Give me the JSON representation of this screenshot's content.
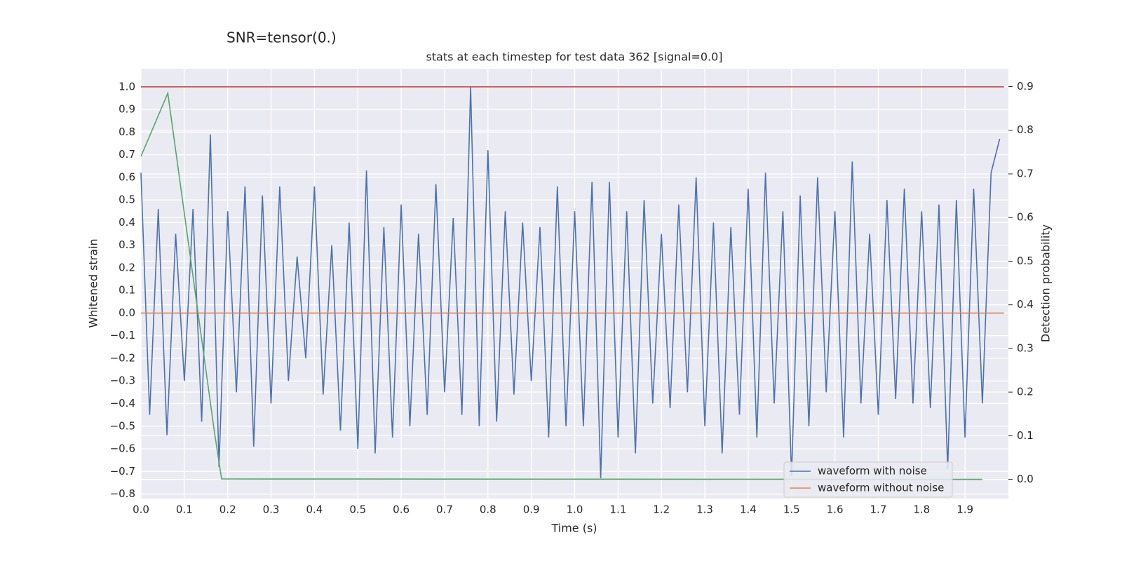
{
  "chart_data": {
    "type": "line",
    "suptitle": "SNR=tensor(0.)",
    "title": "stats at each timestep for test data 362 [signal=0.0]",
    "xlabel": "Time (s)",
    "ylabel": "Whitened strain",
    "y2label": "Detection probability",
    "xlim": [
      0,
      2.0
    ],
    "ylim": [
      -0.82,
      1.08
    ],
    "y2lim": [
      -0.044,
      0.941
    ],
    "grid": true,
    "legend": "lower right",
    "xticks": [
      {
        "value": 0,
        "label": "0.0"
      },
      {
        "value": 0.1,
        "label": "0.1"
      },
      {
        "value": 0.2,
        "label": "0.2"
      },
      {
        "value": 0.3,
        "label": "0.3"
      },
      {
        "value": 0.4,
        "label": "0.4"
      },
      {
        "value": 0.5,
        "label": "0.5"
      },
      {
        "value": 0.6,
        "label": "0.6"
      },
      {
        "value": 0.7,
        "label": "0.7"
      },
      {
        "value": 0.8,
        "label": "0.8"
      },
      {
        "value": 0.9,
        "label": "0.9"
      },
      {
        "value": 1.0,
        "label": "1.0"
      },
      {
        "value": 1.1,
        "label": "1.1"
      },
      {
        "value": 1.2,
        "label": "1.2"
      },
      {
        "value": 1.3,
        "label": "1.3"
      },
      {
        "value": 1.4,
        "label": "1.4"
      },
      {
        "value": 1.5,
        "label": "1.5"
      },
      {
        "value": 1.6,
        "label": "1.6"
      },
      {
        "value": 1.7,
        "label": "1.7"
      },
      {
        "value": 1.8,
        "label": "1.8"
      },
      {
        "value": 1.9,
        "label": "1.9"
      }
    ],
    "yticks": [
      {
        "value": -0.8,
        "label": "−0.8"
      },
      {
        "value": -0.7,
        "label": "−0.7"
      },
      {
        "value": -0.6,
        "label": "−0.6"
      },
      {
        "value": -0.5,
        "label": "−0.5"
      },
      {
        "value": -0.4,
        "label": "−0.4"
      },
      {
        "value": -0.3,
        "label": "−0.3"
      },
      {
        "value": -0.2,
        "label": "−0.2"
      },
      {
        "value": -0.1,
        "label": "−0.1"
      },
      {
        "value": 0,
        "label": "0.0"
      },
      {
        "value": 0.1,
        "label": "0.1"
      },
      {
        "value": 0.2,
        "label": "0.2"
      },
      {
        "value": 0.3,
        "label": "0.3"
      },
      {
        "value": 0.4,
        "label": "0.4"
      },
      {
        "value": 0.5,
        "label": "0.5"
      },
      {
        "value": 0.6,
        "label": "0.6"
      },
      {
        "value": 0.7,
        "label": "0.7"
      },
      {
        "value": 0.8,
        "label": "0.8"
      },
      {
        "value": 0.9,
        "label": "0.9"
      },
      {
        "value": 1.0,
        "label": "1.0"
      }
    ],
    "y2ticks": [
      {
        "value": 0,
        "label": "0.0"
      },
      {
        "value": 0.1,
        "label": "0.1"
      },
      {
        "value": 0.2,
        "label": "0.2"
      },
      {
        "value": 0.3,
        "label": "0.3"
      },
      {
        "value": 0.4,
        "label": "0.4"
      },
      {
        "value": 0.5,
        "label": "0.5"
      },
      {
        "value": 0.6,
        "label": "0.6"
      },
      {
        "value": 0.7,
        "label": "0.7"
      },
      {
        "value": 0.8,
        "label": "0.8"
      },
      {
        "value": 0.9,
        "label": "0.9"
      }
    ],
    "series": [
      {
        "name": "waveform with noise",
        "color": "#4c72b0",
        "x": [
          0,
          0.02,
          0.04,
          0.06,
          0.08,
          0.1,
          0.12,
          0.14,
          0.16,
          0.18,
          0.2,
          0.22,
          0.24,
          0.26,
          0.28,
          0.3,
          0.32,
          0.34,
          0.36,
          0.38,
          0.4,
          0.42,
          0.44,
          0.46,
          0.48,
          0.5,
          0.52,
          0.54,
          0.56,
          0.58,
          0.6,
          0.62,
          0.64,
          0.66,
          0.68,
          0.7,
          0.72,
          0.74,
          0.76,
          0.78,
          0.8,
          0.82,
          0.84,
          0.86,
          0.88,
          0.9,
          0.92,
          0.94,
          0.96,
          0.98,
          1.0,
          1.02,
          1.04,
          1.06,
          1.08,
          1.1,
          1.12,
          1.14,
          1.16,
          1.18,
          1.2,
          1.22,
          1.24,
          1.26,
          1.28,
          1.3,
          1.32,
          1.34,
          1.36,
          1.38,
          1.4,
          1.42,
          1.44,
          1.46,
          1.48,
          1.5,
          1.52,
          1.54,
          1.56,
          1.58,
          1.6,
          1.62,
          1.64,
          1.66,
          1.68,
          1.7,
          1.72,
          1.74,
          1.76,
          1.78,
          1.8,
          1.82,
          1.84,
          1.86,
          1.88,
          1.9,
          1.92,
          1.94,
          1.96,
          1.98
        ],
        "values": [
          0.62,
          -0.45,
          0.46,
          -0.54,
          0.35,
          -0.3,
          0.46,
          -0.48,
          0.79,
          -0.68,
          0.45,
          -0.35,
          0.56,
          -0.59,
          0.52,
          -0.4,
          0.56,
          -0.3,
          0.25,
          -0.2,
          0.56,
          -0.36,
          0.3,
          -0.52,
          0.4,
          -0.6,
          0.63,
          -0.62,
          0.38,
          -0.55,
          0.48,
          -0.5,
          0.35,
          -0.45,
          0.57,
          -0.35,
          0.42,
          -0.45,
          1.0,
          -0.5,
          0.72,
          -0.48,
          0.45,
          -0.36,
          0.4,
          -0.3,
          0.38,
          -0.55,
          0.56,
          -0.5,
          0.45,
          -0.5,
          0.58,
          -0.73,
          0.58,
          -0.55,
          0.45,
          -0.62,
          0.5,
          -0.4,
          0.35,
          -0.42,
          0.48,
          -0.35,
          0.6,
          -0.5,
          0.4,
          -0.62,
          0.38,
          -0.45,
          0.55,
          -0.55,
          0.62,
          -0.4,
          0.45,
          -0.72,
          0.52,
          -0.5,
          0.6,
          -0.35,
          0.45,
          -0.55,
          0.67,
          -0.4,
          0.35,
          -0.45,
          0.5,
          -0.38,
          0.55,
          -0.4,
          0.45,
          -0.42,
          0.48,
          -0.69,
          0.5,
          -0.55,
          0.55,
          -0.4,
          0.62,
          0.77
        ]
      },
      {
        "name": "waveform without noise",
        "color": "#dd8452",
        "x": [
          0,
          1.99
        ],
        "values": [
          0,
          0
        ]
      },
      {
        "color": "#c44e52",
        "x": [
          0,
          1.99
        ],
        "values": [
          1.0,
          1.0
        ]
      },
      {
        "color": "#55a868",
        "axis": "y2",
        "x": [
          0,
          0.062,
          0.17,
          0.186,
          1.94
        ],
        "values": [
          0.74,
          0.885,
          0.105,
          0.001,
          0.0
        ]
      }
    ]
  }
}
